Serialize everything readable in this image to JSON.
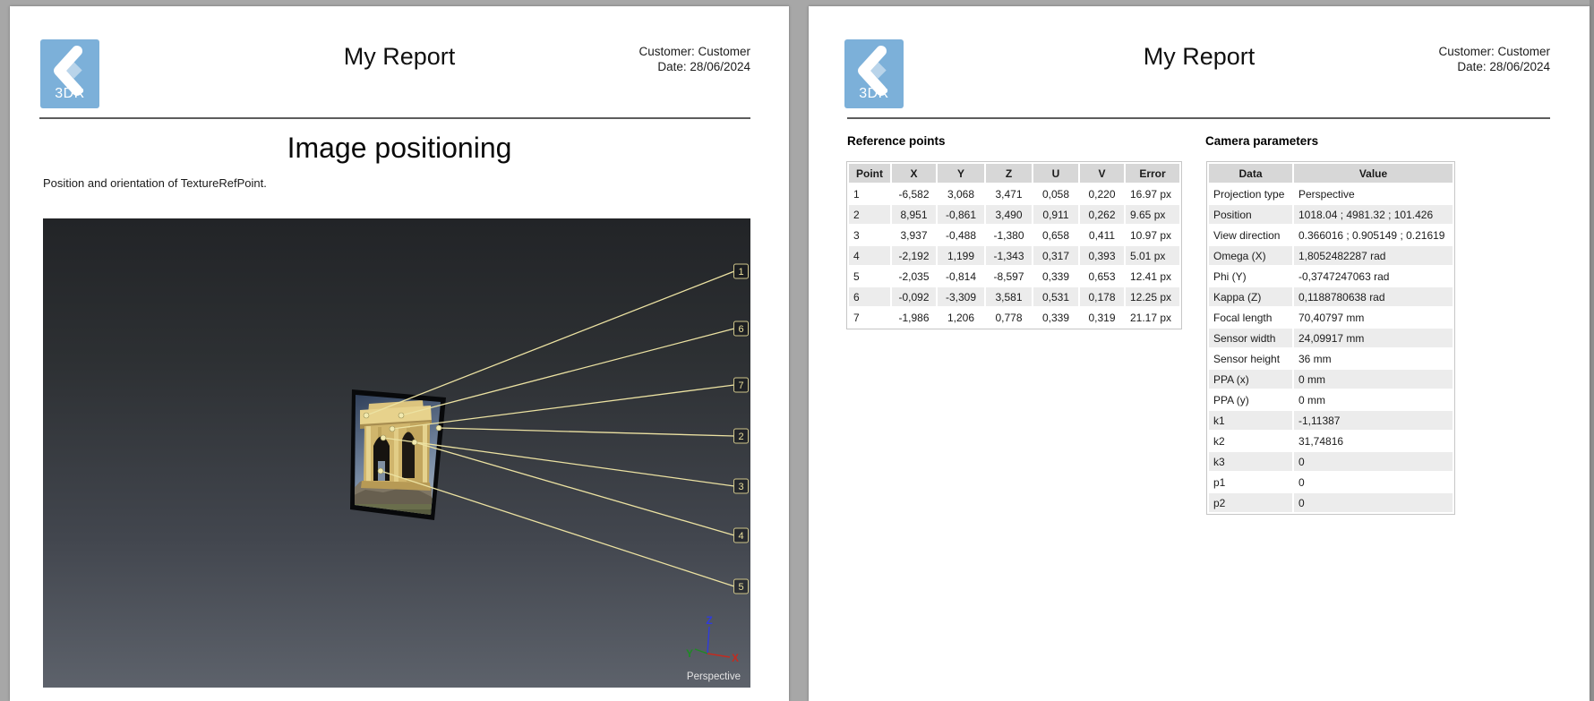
{
  "colors": {
    "brand_blue": "#7cb0d9",
    "ray_yellow": "#ece2a2",
    "axis_x_red": "#c32b20",
    "axis_y_green": "#1f8a24",
    "axis_z_blue": "#2f3bdc"
  },
  "pages": [
    {
      "header": {
        "logo": "3DR",
        "title": "My Report",
        "customer": "Customer: Customer",
        "date": "Date: 28/06/2024"
      },
      "title": "Image positioning",
      "description": "Position and orientation of TextureRefPoint.",
      "viewport": {
        "point_labels": [
          "1",
          "6",
          "7",
          "2",
          "3",
          "4",
          "5"
        ],
        "axis_labels": {
          "x": "X",
          "y": "Y",
          "z": "Z"
        },
        "mode_label": "Perspective"
      }
    },
    {
      "header": {
        "logo": "3DR",
        "title": "My Report",
        "customer": "Customer: Customer",
        "date": "Date: 28/06/2024"
      },
      "reference_points": {
        "title": "Reference points",
        "columns": [
          "Point",
          "X",
          "Y",
          "Z",
          "U",
          "V",
          "Error"
        ],
        "rows": [
          [
            "1",
            "-6,582",
            "3,068",
            "3,471",
            "0,058",
            "0,220",
            "16.97 px"
          ],
          [
            "2",
            "8,951",
            "-0,861",
            "3,490",
            "0,911",
            "0,262",
            "9.65 px"
          ],
          [
            "3",
            "3,937",
            "-0,488",
            "-1,380",
            "0,658",
            "0,411",
            "10.97 px"
          ],
          [
            "4",
            "-2,192",
            "1,199",
            "-1,343",
            "0,317",
            "0,393",
            "5.01 px"
          ],
          [
            "5",
            "-2,035",
            "-0,814",
            "-8,597",
            "0,339",
            "0,653",
            "12.41 px"
          ],
          [
            "6",
            "-0,092",
            "-3,309",
            "3,581",
            "0,531",
            "0,178",
            "12.25 px"
          ],
          [
            "7",
            "-1,986",
            "1,206",
            "0,778",
            "0,339",
            "0,319",
            "21.17 px"
          ]
        ]
      },
      "camera_parameters": {
        "title": "Camera parameters",
        "columns": [
          "Data",
          "Value"
        ],
        "rows": [
          [
            "Projection type",
            "Perspective"
          ],
          [
            "Position",
            "1018.04 ; 4981.32 ; 101.426"
          ],
          [
            "View direction",
            "0.366016 ; 0.905149 ; 0.21619"
          ],
          [
            "Omega (X)",
            "1,8052482287 rad"
          ],
          [
            "Phi (Y)",
            "-0,3747247063 rad"
          ],
          [
            "Kappa (Z)",
            "0,1188780638 rad"
          ],
          [
            "Focal length",
            "70,40797 mm"
          ],
          [
            "Sensor width",
            "24,09917 mm"
          ],
          [
            "Sensor height",
            "36 mm"
          ],
          [
            "PPA (x)",
            "0 mm"
          ],
          [
            "PPA (y)",
            "0 mm"
          ],
          [
            "k1",
            "-1,11387"
          ],
          [
            "k2",
            "31,74816"
          ],
          [
            "k3",
            "0"
          ],
          [
            "p1",
            "0"
          ],
          [
            "p2",
            "0"
          ]
        ]
      }
    }
  ]
}
